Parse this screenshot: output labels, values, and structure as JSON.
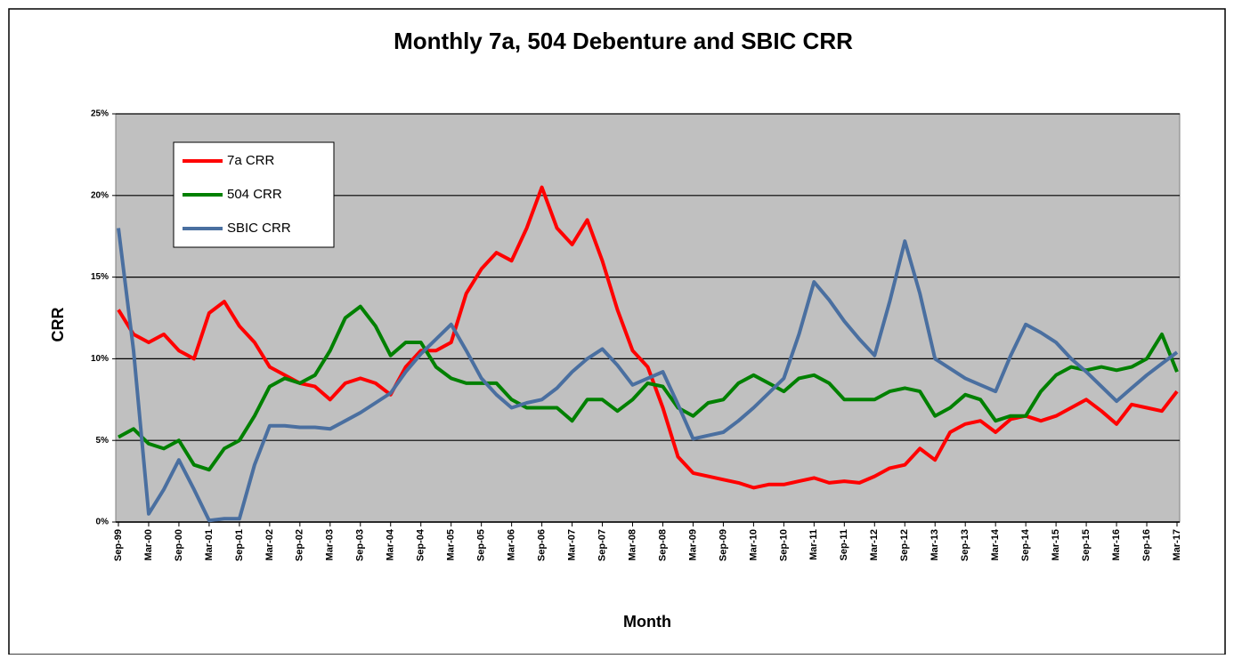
{
  "chart_data": {
    "type": "line",
    "title": "Monthly 7a, 504 Debenture and SBIC CRR",
    "x_label": "Month",
    "y_label": "CRR",
    "categories": [
      "Sep-99",
      null,
      "Mar-00",
      null,
      "Sep-00",
      null,
      "Mar-01",
      null,
      "Sep-01",
      null,
      "Mar-02",
      null,
      "Sep-02",
      null,
      "Mar-03",
      null,
      "Sep-03",
      null,
      "Mar-04",
      null,
      "Sep-04",
      null,
      "Mar-05",
      null,
      "Sep-05",
      null,
      "Mar-06",
      null,
      "Sep-06",
      null,
      "Mar-07",
      null,
      "Sep-07",
      null,
      "Mar-08",
      null,
      "Sep-08",
      null,
      "Mar-09",
      null,
      "Sep-09",
      null,
      "Mar-10",
      null,
      "Sep-10",
      null,
      "Mar-11",
      null,
      "Sep-11",
      null,
      "Mar-12",
      null,
      "Sep-12",
      null,
      "Mar-13",
      null,
      "Sep-13",
      null,
      "Mar-14",
      null,
      "Sep-14",
      null,
      "Mar-15",
      null,
      "Sep-15",
      null,
      "Mar-16",
      null,
      "Sep-16",
      null,
      "Mar-17"
    ],
    "series": [
      {
        "name": "7a CRR",
        "color": "#ff0000",
        "values": [
          13,
          11.5,
          11,
          11.5,
          10.5,
          10,
          12.8,
          13.5,
          12,
          11,
          9.5,
          9,
          8.5,
          8.3,
          7.5,
          8.5,
          8.8,
          8.5,
          7.8,
          9.5,
          10.5,
          10.5,
          11,
          14,
          15.5,
          16.5,
          16,
          18,
          20.5,
          18,
          17,
          18.5,
          16,
          13,
          10.5,
          9.5,
          7,
          4,
          3,
          2.8,
          2.6,
          2.4,
          2.1,
          2.3,
          2.3,
          2.5,
          2.7,
          2.4,
          2.5,
          2.4,
          2.8,
          3.3,
          3.5,
          4.5,
          3.8,
          5.5,
          6,
          6.2,
          5.5,
          6.3,
          6.5,
          6.2,
          6.5,
          7,
          7.5,
          6.8,
          6,
          7.2,
          7,
          6.8,
          8
        ]
      },
      {
        "name": "504 CRR",
        "color": "#008000",
        "values": [
          5.2,
          5.7,
          4.8,
          4.5,
          5,
          3.5,
          3.2,
          4.5,
          5,
          6.5,
          8.3,
          8.8,
          8.5,
          9,
          10.5,
          12.5,
          13.2,
          12,
          10.2,
          11,
          11,
          9.5,
          8.8,
          8.5,
          8.5,
          8.5,
          7.5,
          7,
          7,
          7,
          6.2,
          7.5,
          7.5,
          6.8,
          7.5,
          8.5,
          8.3,
          7,
          6.5,
          7.3,
          7.5,
          8.5,
          9,
          8.5,
          8,
          8.8,
          9,
          8.5,
          7.5,
          7.5,
          7.5,
          8,
          8.2,
          8,
          6.5,
          7,
          7.8,
          7.5,
          6.2,
          6.5,
          6.5,
          8,
          9,
          9.5,
          9.3,
          9.5,
          9.3,
          9.5,
          10,
          11.5,
          9.2
        ]
      },
      {
        "name": "SBIC CRR",
        "color": "#4a6fa0",
        "values": [
          18,
          10.5,
          0.5,
          2,
          3.8,
          2,
          0.1,
          0.2,
          0.2,
          3.5,
          5.9,
          5.9,
          5.8,
          5.8,
          5.7,
          6.2,
          6.7,
          7.3,
          7.9,
          9.2,
          10.3,
          11.2,
          12.1,
          10.5,
          8.8,
          7.8,
          7,
          7.3,
          7.5,
          8.2,
          9.2,
          10,
          10.6,
          9.6,
          8.4,
          8.8,
          9.2,
          7.2,
          5.1,
          5.3,
          5.5,
          6.2,
          7,
          7.9,
          8.8,
          11.5,
          14.7,
          13.6,
          12.3,
          11.2,
          10.2,
          13.5,
          17.2,
          14,
          10,
          9.4,
          8.8,
          8.4,
          8,
          10.2,
          12.1,
          11.6,
          11,
          10,
          9.2,
          8.3,
          7.4,
          8.2,
          9,
          9.7,
          10.4
        ]
      }
    ],
    "ylim": [
      0,
      25
    ],
    "yticks": [
      {
        "value": 0,
        "label": "0%"
      },
      {
        "value": 5,
        "label": "5%"
      },
      {
        "value": 10,
        "label": "10%"
      },
      {
        "value": 15,
        "label": "15%"
      },
      {
        "value": 20,
        "label": "20%"
      },
      {
        "value": 25,
        "label": "25%"
      }
    ],
    "grid": true,
    "legend": "upper left"
  }
}
